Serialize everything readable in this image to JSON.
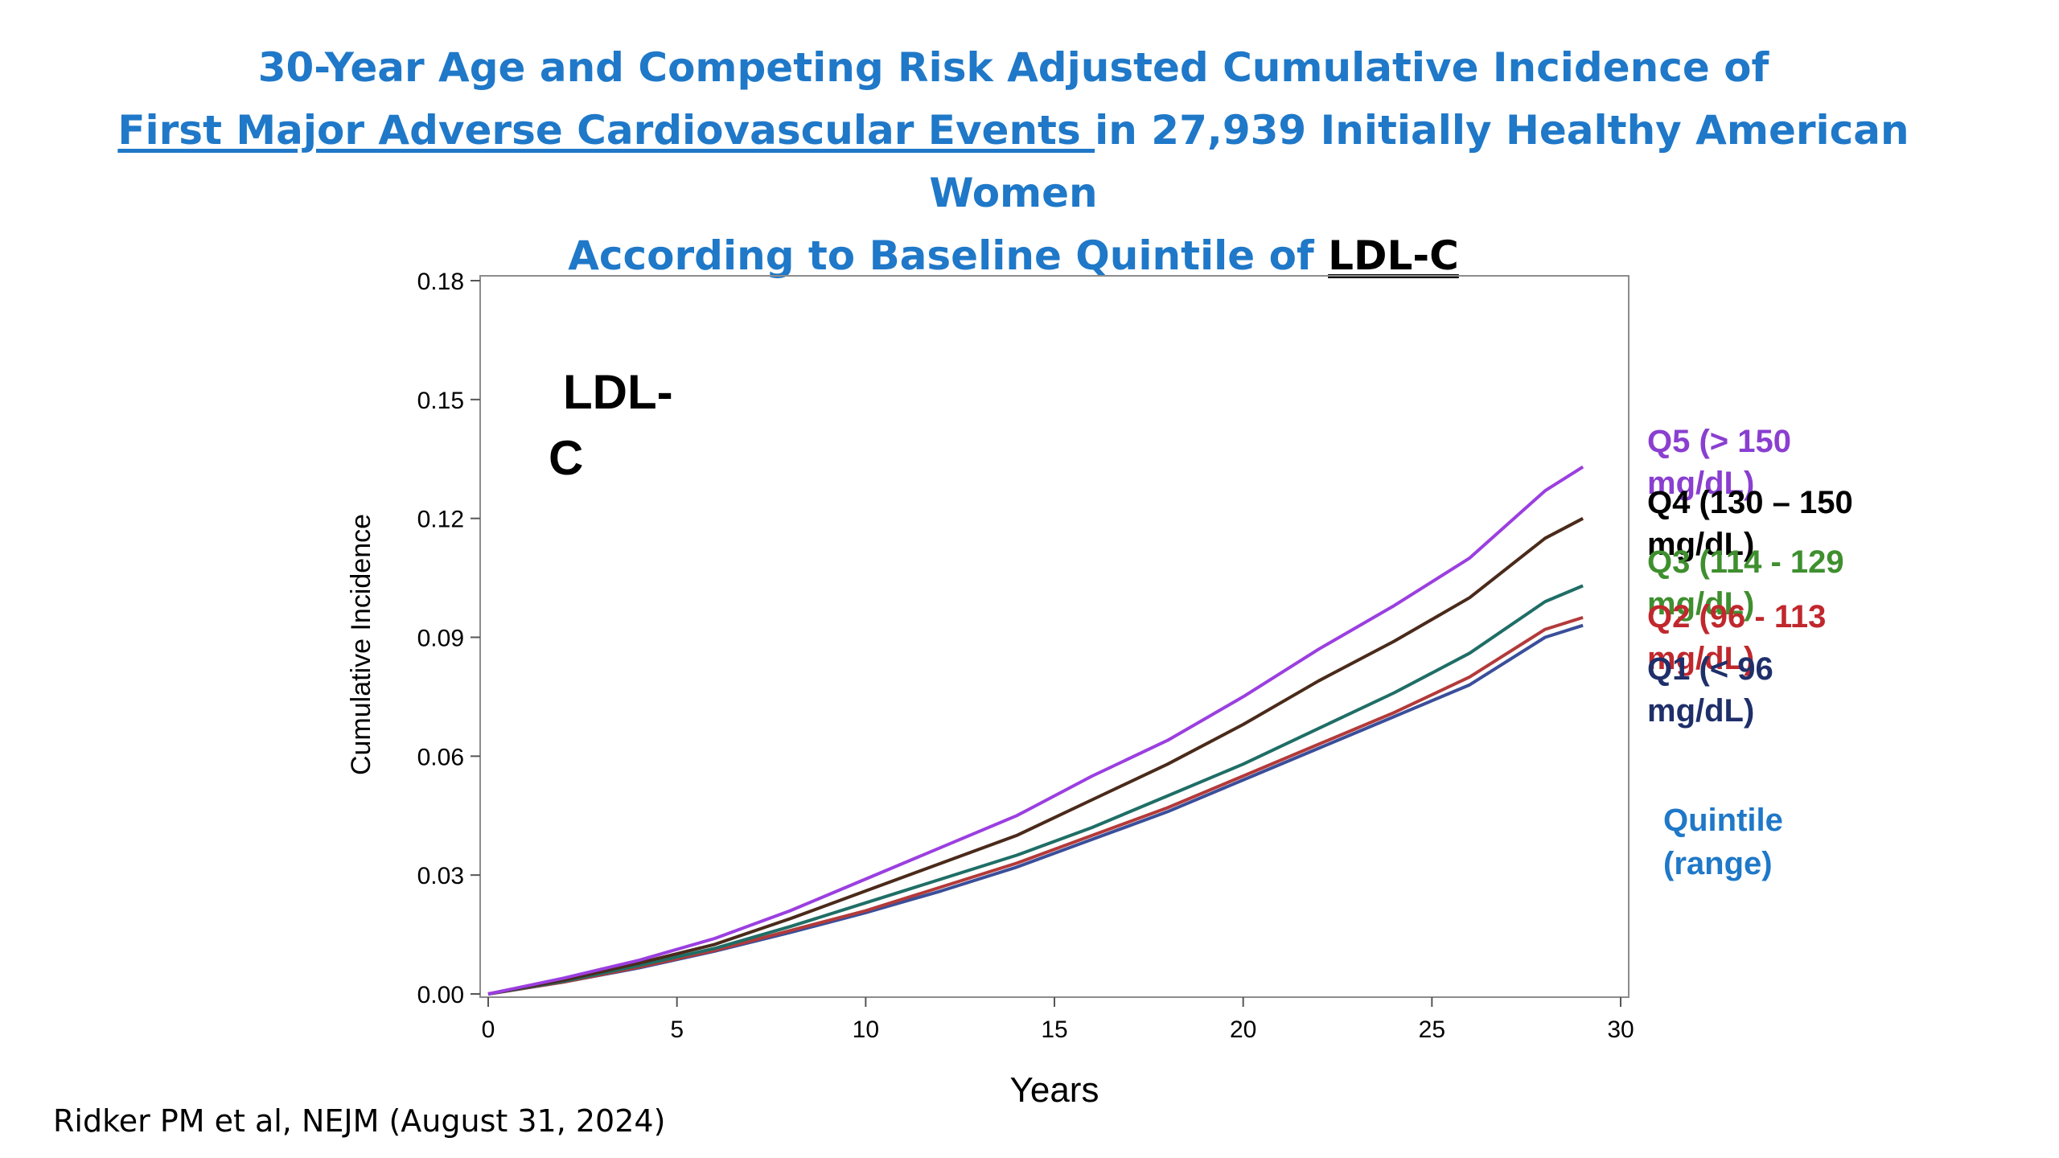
{
  "title": {
    "line1": "30-Year Age and Competing Risk Adjusted Cumulative Incidence of",
    "line2_underlined": "First Major Adverse Cardiovascular Events ",
    "line2_rest": "in 27,939 Initially Healthy American",
    "line3": "Women",
    "line4_prefix": "According to Baseline Quintile of ",
    "line4_key": "LDL-C"
  },
  "citation": "Ridker PM et al, NEJM (August 31, 2024)",
  "colors": {
    "title": "#1f78c8",
    "Q5": "#9b3fe0",
    "Q4": "#4a2a1a",
    "Q3": "#1f6e66",
    "Q2": "#b33a3a",
    "Q1": "#3a4f9a"
  },
  "chart_data": {
    "type": "line",
    "xlabel": "Years",
    "ylabel": "Cumulative Incidence",
    "xlim": [
      0,
      30
    ],
    "ylim": [
      0,
      0.18
    ],
    "xticks": [
      "0",
      "5",
      "10",
      "15",
      "20",
      "25",
      "30"
    ],
    "yticks": [
      "0.00",
      "0.03",
      "0.06",
      "0.09",
      "0.12",
      "0.15",
      "0.18"
    ],
    "annotation_line1": "LDL-",
    "annotation_line2": "C",
    "legend_title_line1": "Quintile",
    "legend_title_line2": "(range)",
    "legend_title_color": "#1f78c8",
    "x": [
      0,
      2,
      4,
      6,
      8,
      10,
      12,
      14,
      16,
      18,
      20,
      22,
      24,
      26,
      28,
      29
    ],
    "series": [
      {
        "name": "Q5  (> 150 mg/dL)",
        "label_line1": "Q5  (> 150",
        "label_line2": "mg/dL)",
        "label_color": "#8a3fd0",
        "color": "#9b3fe0",
        "values": [
          0,
          0.004,
          0.0085,
          0.014,
          0.021,
          0.029,
          0.037,
          0.045,
          0.055,
          0.064,
          0.075,
          0.087,
          0.098,
          0.11,
          0.127,
          0.133
        ]
      },
      {
        "name": "Q4  (130 – 150 mg/dL)",
        "label_line1": "Q4  (130 – 150",
        "label_line2": "mg/dL)",
        "label_color": "#000000",
        "color": "#4a2a1a",
        "values": [
          0,
          0.0035,
          0.0078,
          0.0125,
          0.019,
          0.026,
          0.033,
          0.04,
          0.049,
          0.058,
          0.068,
          0.079,
          0.089,
          0.1,
          0.115,
          0.12
        ]
      },
      {
        "name": "Q3  (114 - 129 mg/dL)",
        "label_line1": "Q3  (114 - 129",
        "label_line2": "mg/dL)",
        "label_color": "#3f8f2f",
        "color": "#1f6e66",
        "values": [
          0,
          0.0032,
          0.0072,
          0.0115,
          0.017,
          0.023,
          0.029,
          0.035,
          0.042,
          0.05,
          0.058,
          0.067,
          0.076,
          0.086,
          0.099,
          0.103
        ]
      },
      {
        "name": "Q2  (96 - 113 mg/dL)",
        "label_line1": "Q2  (96 - 113",
        "label_line2": "mg/dL)",
        "label_color": "#c0282d",
        "color": "#b33a3a",
        "values": [
          0,
          0.003,
          0.0068,
          0.011,
          0.016,
          0.021,
          0.027,
          0.033,
          0.04,
          0.047,
          0.055,
          0.063,
          0.071,
          0.08,
          0.092,
          0.095
        ]
      },
      {
        "name": "Q1  (< 96 mg/dL)",
        "label_line1": "Q1  (< 96",
        "label_line2": "mg/dL)",
        "label_color": "#1f2f6a",
        "color": "#3a4f9a",
        "values": [
          0,
          0.003,
          0.0066,
          0.0108,
          0.0155,
          0.0205,
          0.026,
          0.032,
          0.039,
          0.046,
          0.054,
          0.062,
          0.07,
          0.078,
          0.09,
          0.093
        ]
      }
    ]
  }
}
